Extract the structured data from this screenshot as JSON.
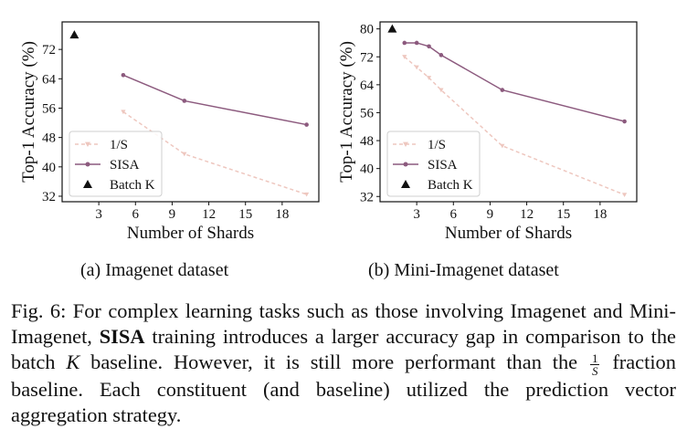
{
  "subcaptions": {
    "a": {
      "tag": "(a)",
      "text": "Imagenet dataset"
    },
    "b": {
      "tag": "(b)",
      "text": "Mini-Imagenet dataset"
    }
  },
  "caption": {
    "label": "Fig. 6:",
    "part1": "For complex learning tasks such as those involving Imagenet and Mini-Imagenet,",
    "bold": "SISA",
    "part2": "training introduces a larger accuracy gap in comparison to the batch",
    "k": "K",
    "part3": "baseline. However, it is still more performant than the",
    "frac_num": "1",
    "frac_den": "S",
    "part4": "fraction baseline. Each constituent (and baseline) utilized the prediction vector aggregation strategy."
  },
  "colors": {
    "sisa": "#8c5a7e",
    "one_over_s": "#eec7bf",
    "batch_k": "#111111",
    "axis": "#111111"
  },
  "chart_data": [
    {
      "type": "line",
      "title": "",
      "xlabel": "Number of Shards",
      "ylabel": "Top-1 Accuracy (%)",
      "xlim": [
        0,
        21
      ],
      "ylim": [
        30.5,
        79.5
      ],
      "xticks": [
        3,
        6,
        9,
        12,
        15,
        18
      ],
      "yticks": [
        32,
        40,
        48,
        56,
        64,
        72
      ],
      "legend": "lower-left",
      "grid": false,
      "series": [
        {
          "name": "1/S",
          "marker": "triangle-down",
          "style": "dashed",
          "x": [
            5,
            10,
            20
          ],
          "y": [
            55,
            43.5,
            32.5
          ]
        },
        {
          "name": "SISA",
          "marker": "circle",
          "style": "solid",
          "x": [
            5,
            10,
            20
          ],
          "y": [
            65,
            58,
            51.5
          ]
        },
        {
          "name": "Batch K",
          "marker": "triangle-up",
          "style": "none",
          "x": [
            1
          ],
          "y": [
            76
          ]
        }
      ]
    },
    {
      "type": "line",
      "title": "",
      "xlabel": "Number of Shards",
      "ylabel": "Top-1 Accuracy (%)",
      "xlim": [
        0,
        21
      ],
      "ylim": [
        30.5,
        82
      ],
      "xticks": [
        3,
        6,
        9,
        12,
        15,
        18
      ],
      "yticks": [
        32,
        40,
        48,
        56,
        64,
        72,
        80
      ],
      "legend": "lower-left",
      "grid": false,
      "series": [
        {
          "name": "1/S",
          "marker": "triangle-down",
          "style": "dashed",
          "x": [
            2,
            3,
            4,
            5,
            10,
            20
          ],
          "y": [
            72,
            69,
            66,
            62.5,
            46.5,
            32.5
          ]
        },
        {
          "name": "SISA",
          "marker": "circle",
          "style": "solid",
          "x": [
            2,
            3,
            4,
            5,
            10,
            20
          ],
          "y": [
            76,
            76,
            75,
            72.5,
            62.5,
            53.5
          ]
        },
        {
          "name": "Batch K",
          "marker": "triangle-up",
          "style": "none",
          "x": [
            1
          ],
          "y": [
            80
          ]
        }
      ]
    }
  ]
}
